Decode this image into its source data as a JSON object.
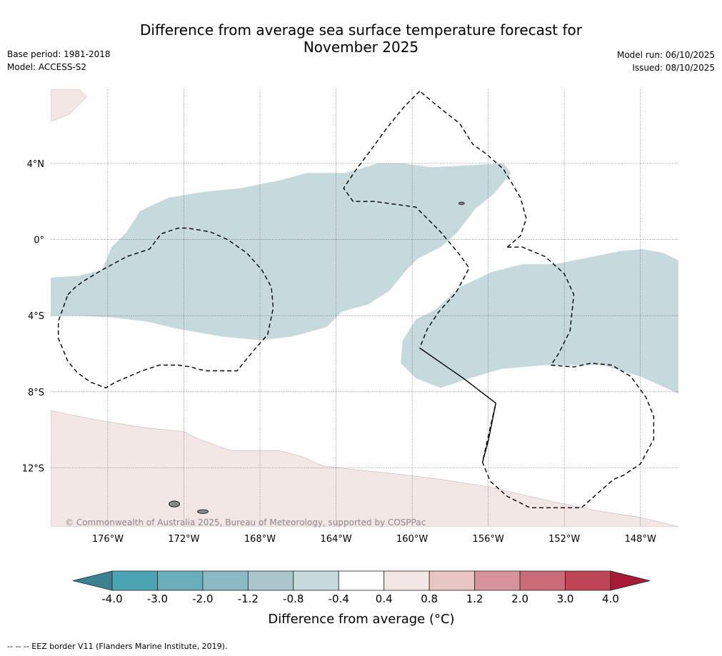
{
  "chart_data": {
    "type": "heatmap",
    "title_line1": "Difference from average sea surface temperature forecast for",
    "title_line2": "November 2025",
    "base_period": "Base period: 1981-2018",
    "model": "Model: ACCESS-S2",
    "model_run": "Model run: 06/10/2025",
    "issued": "Issued: 08/10/2025",
    "lon_range": [
      -179.0,
      -146.0
    ],
    "lat_range": [
      -15.1,
      7.9
    ],
    "lon_ticks": [
      {
        "value": -176,
        "label": "176°W"
      },
      {
        "value": -172,
        "label": "172°W"
      },
      {
        "value": -168,
        "label": "168°W"
      },
      {
        "value": -164,
        "label": "164°W"
      },
      {
        "value": -160,
        "label": "160°W"
      },
      {
        "value": -156,
        "label": "156°W"
      },
      {
        "value": -152,
        "label": "152°W"
      },
      {
        "value": -148,
        "label": "148°W"
      }
    ],
    "lat_ticks": [
      {
        "value": 4,
        "label": "4°N"
      },
      {
        "value": 0,
        "label": "0°"
      },
      {
        "value": -4,
        "label": "4°S"
      },
      {
        "value": -8,
        "label": "8°S"
      },
      {
        "value": -12,
        "label": "12°S"
      }
    ],
    "regions": [
      {
        "name": "cool-anomaly-band-west",
        "bin": "-0.8 to -0.4",
        "polygon": [
          [
            -179,
            -2
          ],
          [
            -177.5,
            -1.9
          ],
          [
            -176.3,
            -1.6
          ],
          [
            -175.8,
            -0.4
          ],
          [
            -175,
            0.4
          ],
          [
            -174.3,
            1.5
          ],
          [
            -172.8,
            2.2
          ],
          [
            -171,
            2.5
          ],
          [
            -169,
            2.7
          ],
          [
            -167,
            3.1
          ],
          [
            -165.5,
            3.5
          ],
          [
            -163.5,
            3.5
          ],
          [
            -161.8,
            4
          ],
          [
            -160.5,
            4
          ],
          [
            -159,
            3.8
          ],
          [
            -157,
            3.9
          ],
          [
            -155.2,
            4
          ],
          [
            -154.8,
            3.5
          ],
          [
            -155.7,
            2.4
          ],
          [
            -156.7,
            1.6
          ],
          [
            -157.6,
            0.4
          ],
          [
            -158.5,
            -0.4
          ],
          [
            -159.7,
            -1
          ],
          [
            -160.3,
            -1.6
          ],
          [
            -161.2,
            -2.7
          ],
          [
            -162.3,
            -3.4
          ],
          [
            -163.7,
            -3.8
          ],
          [
            -164.5,
            -4.6
          ],
          [
            -166.3,
            -5.1
          ],
          [
            -168,
            -5.3
          ],
          [
            -170,
            -5.1
          ],
          [
            -172.3,
            -4.7
          ],
          [
            -174,
            -4.3
          ],
          [
            -175.8,
            -4.1
          ],
          [
            -177.5,
            -4
          ],
          [
            -179,
            -4
          ]
        ]
      },
      {
        "name": "cool-anomaly-band-east",
        "bin": "-0.8 to -0.4",
        "polygon": [
          [
            -146,
            -1.1
          ],
          [
            -146.8,
            -0.7
          ],
          [
            -147.9,
            -0.5
          ],
          [
            -149,
            -0.6
          ],
          [
            -150.5,
            -0.9
          ],
          [
            -152.5,
            -1.3
          ],
          [
            -154.2,
            -1.3
          ],
          [
            -155.8,
            -1.7
          ],
          [
            -157.5,
            -2.5
          ],
          [
            -158.8,
            -3.7
          ],
          [
            -159.8,
            -4.2
          ],
          [
            -160.5,
            -5.3
          ],
          [
            -160.6,
            -6.5
          ],
          [
            -159.8,
            -7.3
          ],
          [
            -158.5,
            -7.8
          ],
          [
            -157,
            -7.3
          ],
          [
            -155.3,
            -6.8
          ],
          [
            -153,
            -6.6
          ],
          [
            -150,
            -6.6
          ],
          [
            -148,
            -7.2
          ],
          [
            -146,
            -8.1
          ]
        ]
      },
      {
        "name": "warm-anomaly-band-south",
        "bin": "0.4 to 0.8",
        "polygon": [
          [
            -179,
            -9
          ],
          [
            -176.5,
            -9.5
          ],
          [
            -174,
            -9.9
          ],
          [
            -172,
            -10.1
          ],
          [
            -171.2,
            -10.5
          ],
          [
            -169.5,
            -11.1
          ],
          [
            -168.3,
            -11.1
          ],
          [
            -167,
            -11.1
          ],
          [
            -165.8,
            -11.4
          ],
          [
            -164.7,
            -11.9
          ],
          [
            -163,
            -12.1
          ],
          [
            -161,
            -12.3
          ],
          [
            -158.5,
            -12.6
          ],
          [
            -156,
            -13
          ],
          [
            -152.5,
            -13.8
          ],
          [
            -150,
            -14.3
          ],
          [
            -148,
            -14.6
          ],
          [
            -146,
            -15.1
          ],
          [
            -179,
            -15.1
          ]
        ]
      },
      {
        "name": "warm-anomaly-corner-nw",
        "bin": "0.4 to 0.8",
        "polygon": [
          [
            -179,
            7.9
          ],
          [
            -177.5,
            7.9
          ],
          [
            -177.1,
            7.5
          ],
          [
            -178,
            6.6
          ],
          [
            -179,
            6.2
          ]
        ]
      }
    ],
    "eez_dashed": [
      [
        [
          -159.6,
          7.8
        ],
        [
          -160.4,
          7
        ],
        [
          -161.3,
          5.9
        ],
        [
          -162.1,
          4.8
        ],
        [
          -163,
          3.6
        ],
        [
          -163.6,
          2.7
        ],
        [
          -163.1,
          2
        ],
        [
          -162,
          2
        ],
        [
          -160.5,
          1.8
        ],
        [
          -159.8,
          1.7
        ],
        [
          -158.5,
          0.4
        ],
        [
          -157.5,
          -0.8
        ],
        [
          -157,
          -1.5
        ],
        [
          -157.7,
          -2.8
        ],
        [
          -158.6,
          -3.8
        ],
        [
          -159.2,
          -4.7
        ],
        [
          -159.6,
          -5.7
        ]
      ],
      [
        [
          -155,
          -0.4
        ],
        [
          -154.3,
          0.2
        ],
        [
          -154,
          1.1
        ],
        [
          -154.3,
          2.2
        ],
        [
          -155.2,
          3.7
        ],
        [
          -156.1,
          4.5
        ],
        [
          -156.8,
          5
        ],
        [
          -157.5,
          6.1
        ],
        [
          -158.4,
          6.8
        ],
        [
          -159.6,
          7.8
        ]
      ],
      [
        [
          -155,
          -0.4
        ],
        [
          -154.2,
          -0.4
        ],
        [
          -153,
          -0.9
        ],
        [
          -152,
          -1.8
        ],
        [
          -151.5,
          -2.9
        ],
        [
          -151.7,
          -4.8
        ],
        [
          -152.3,
          -6
        ],
        [
          -152.7,
          -6.6
        ],
        [
          -151.5,
          -6.7
        ],
        [
          -150.6,
          -6.5
        ],
        [
          -149.5,
          -6.6
        ],
        [
          -148.5,
          -7.2
        ],
        [
          -147.7,
          -8.3
        ],
        [
          -147.3,
          -9.3
        ],
        [
          -147.3,
          -10.5
        ],
        [
          -148,
          -11.8
        ],
        [
          -148.9,
          -12.4
        ],
        [
          -149.4,
          -12.6
        ],
        [
          -150.2,
          -13.3
        ],
        [
          -151.1,
          -14.1
        ],
        [
          -152.9,
          -14.1
        ],
        [
          -153.8,
          -14.1
        ],
        [
          -155,
          -13.5
        ],
        [
          -155.9,
          -12.7
        ],
        [
          -156.3,
          -11.7
        ],
        [
          -155.9,
          -9.9
        ],
        [
          -155.6,
          -8.6
        ]
      ],
      [
        [
          -178.1,
          -2.9
        ],
        [
          -177.7,
          -2.5
        ],
        [
          -177.3,
          -2.2
        ],
        [
          -176.3,
          -1.6
        ],
        [
          -175,
          -0.9
        ],
        [
          -173.8,
          -0.5
        ],
        [
          -173.2,
          0.3
        ],
        [
          -172.3,
          0.6
        ],
        [
          -171.8,
          0.6
        ],
        [
          -170.6,
          0.4
        ],
        [
          -169.7,
          0
        ],
        [
          -168.7,
          -0.7
        ],
        [
          -167.9,
          -1.6
        ],
        [
          -167.4,
          -2.5
        ],
        [
          -167.3,
          -3.6
        ],
        [
          -167.6,
          -5
        ],
        [
          -168.3,
          -5.8
        ],
        [
          -168.8,
          -6.4
        ],
        [
          -169.2,
          -6.9
        ],
        [
          -170.8,
          -6.9
        ],
        [
          -171.3,
          -6.8
        ],
        [
          -171.6,
          -6.7
        ],
        [
          -172.3,
          -6.6
        ],
        [
          -173.3,
          -6.6
        ],
        [
          -174.2,
          -6.9
        ],
        [
          -175.6,
          -7.5
        ],
        [
          -176.1,
          -7.8
        ],
        [
          -176.9,
          -7.5
        ],
        [
          -177.6,
          -7.0
        ],
        [
          -178.1,
          -6.4
        ],
        [
          -178.6,
          -5.2
        ],
        [
          -178.6,
          -4.3
        ],
        [
          -178.1,
          -2.9
        ]
      ]
    ],
    "eez_solid": [
      [
        -159.6,
        -5.7
      ],
      [
        -157.3,
        -7.3
      ],
      [
        -155.6,
        -8.6
      ],
      [
        -156,
        -10.6
      ],
      [
        -156.3,
        -11.7
      ]
    ],
    "islands": [
      {
        "name": "samoa-upolu",
        "lon": -172.5,
        "lat": -13.9,
        "rx": 2.5,
        "ry": 1.4
      },
      {
        "name": "samoa-tutuila",
        "lon": -171.0,
        "lat": -14.3,
        "rx": 2.5,
        "ry": 0.9
      },
      {
        "name": "kiritimati-area",
        "lon": -157.4,
        "lat": 1.9,
        "rx": 1.3,
        "ry": 0.6
      }
    ],
    "colorbar": {
      "ticks": [
        "-4.0",
        "-3.0",
        "-2.0",
        "-1.2",
        "-0.8",
        "-0.4",
        "0.4",
        "0.8",
        "1.2",
        "2.0",
        "3.0",
        "4.0"
      ],
      "colors": [
        "#4aa4b4",
        "#6aaebc",
        "#8bbac6",
        "#aac6cc",
        "#c6d9dd",
        "#ffffff",
        "#f3e7e6",
        "#e8c6c2",
        "#d8939a",
        "#c96c78",
        "#be4556"
      ],
      "low_extend_color": "#3b8190",
      "high_extend_color": "#a81a37",
      "label": "Difference from average (°C)"
    },
    "copyright": "© Commonwealth of Australia 2025, Bureau of Meteorology, supported by COSPPac",
    "footer": "--  --  -- EEZ border V11 (Flanders Marine Institute, 2019)."
  }
}
